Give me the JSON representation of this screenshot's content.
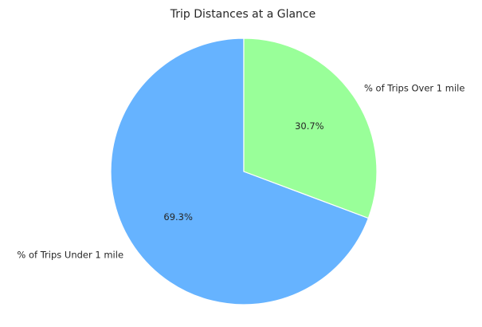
{
  "chart_data": {
    "type": "pie",
    "title": "Trip Distances at a Glance",
    "labels": [
      "% of Trips Under 1 mile",
      "% of Trips Over 1 mile"
    ],
    "values": [
      69.3,
      30.7
    ],
    "percent_labels": [
      "69.3%",
      "30.7%"
    ],
    "colors": [
      "#66b3ff",
      "#99ff99"
    ],
    "edge_color": "#ffffff",
    "start_angle_deg": 90,
    "direction": "counterclockwise",
    "legend": "none"
  }
}
